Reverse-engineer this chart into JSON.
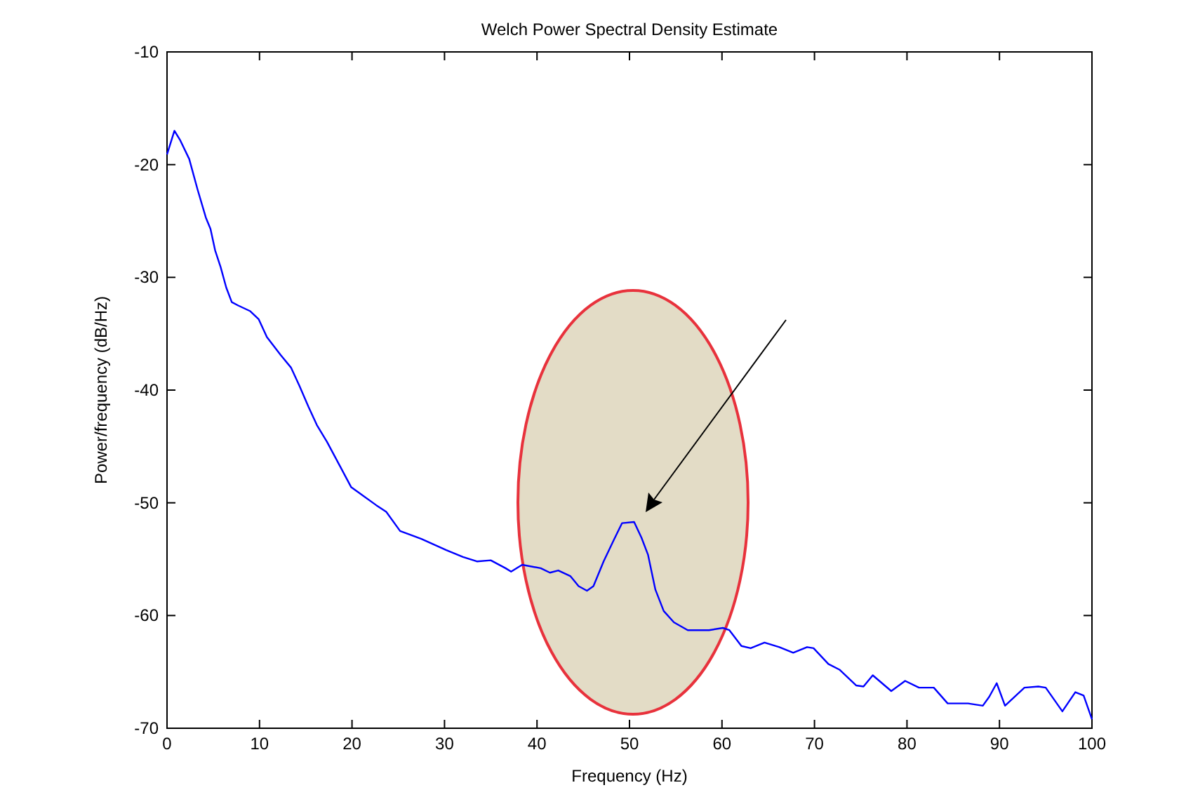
{
  "chart_data": {
    "type": "line",
    "title": "Welch Power Spectral Density Estimate",
    "xlabel": "Frequency (Hz)",
    "ylabel": "Power/frequency (dB/Hz)",
    "xlim": [
      0,
      100
    ],
    "xticks": [
      0,
      10,
      20,
      30,
      40,
      50,
      60,
      70,
      80,
      90,
      100
    ],
    "ylim": [
      -70,
      -10
    ],
    "yticks": [
      -70,
      -60,
      -50,
      -40,
      -30,
      -20,
      -10
    ],
    "grid": false,
    "series": [
      {
        "color": "#0000ff",
        "x": [
          0,
          0.8,
          1.4,
          2.4,
          3.3,
          4.2,
          4.7,
          5.2,
          5.8,
          6.4,
          7,
          7.7,
          9,
          9.9,
          10.8,
          12.3,
          13.4,
          14.3,
          15.3,
          16.2,
          17.3,
          18.8,
          19.9,
          20.9,
          22.6,
          23.7,
          25.2,
          27.5,
          30.2,
          32,
          33.5,
          35,
          36.6,
          37.2,
          38.4,
          40.4,
          41.4,
          42.3,
          43.6,
          44.5,
          45.4,
          46.1,
          47.2,
          48.3,
          49.2,
          50.5,
          51.3,
          52,
          52.8,
          53.7,
          54.8,
          56.3,
          58.6,
          60.1,
          60.8,
          62.1,
          63.1,
          64.6,
          66.2,
          67.7,
          69.2,
          69.9,
          71.5,
          72.7,
          74.5,
          75.3,
          76.3,
          78.3,
          79.8,
          81.3,
          82.9,
          84.4,
          86.6,
          88.2,
          88.9,
          89.7,
          90.6,
          92.7,
          94.2,
          95,
          96.8,
          98.2,
          99.1,
          100
        ],
        "values": [
          -19.1,
          -17,
          -17.8,
          -19.5,
          -22.2,
          -24.7,
          -25.7,
          -27.6,
          -29.1,
          -30.9,
          -32.2,
          -32.5,
          -33,
          -33.7,
          -35.3,
          -36.9,
          -38,
          -39.6,
          -41.5,
          -43.1,
          -44.6,
          -46.9,
          -48.6,
          -49.2,
          -50.2,
          -50.8,
          -52.5,
          -53.2,
          -54.2,
          -54.8,
          -55.2,
          -55.1,
          -55.8,
          -56.1,
          -55.5,
          -55.8,
          -56.2,
          -56,
          -56.5,
          -57.4,
          -57.8,
          -57.4,
          -55.2,
          -53.3,
          -51.8,
          -51.7,
          -53.1,
          -54.6,
          -57.7,
          -59.6,
          -60.6,
          -61.3,
          -61.3,
          -61.1,
          -61.3,
          -62.7,
          -62.9,
          -62.4,
          -62.8,
          -63.3,
          -62.8,
          -62.9,
          -64.3,
          -64.8,
          -66.2,
          -66.3,
          -65.3,
          -66.7,
          -65.8,
          -66.4,
          -66.4,
          -67.8,
          -67.8,
          -68,
          -67.2,
          -66,
          -68,
          -66.4,
          -66.3,
          -66.4,
          -68.5,
          -66.8,
          -67.1,
          -69.2
        ]
      }
    ]
  }
}
